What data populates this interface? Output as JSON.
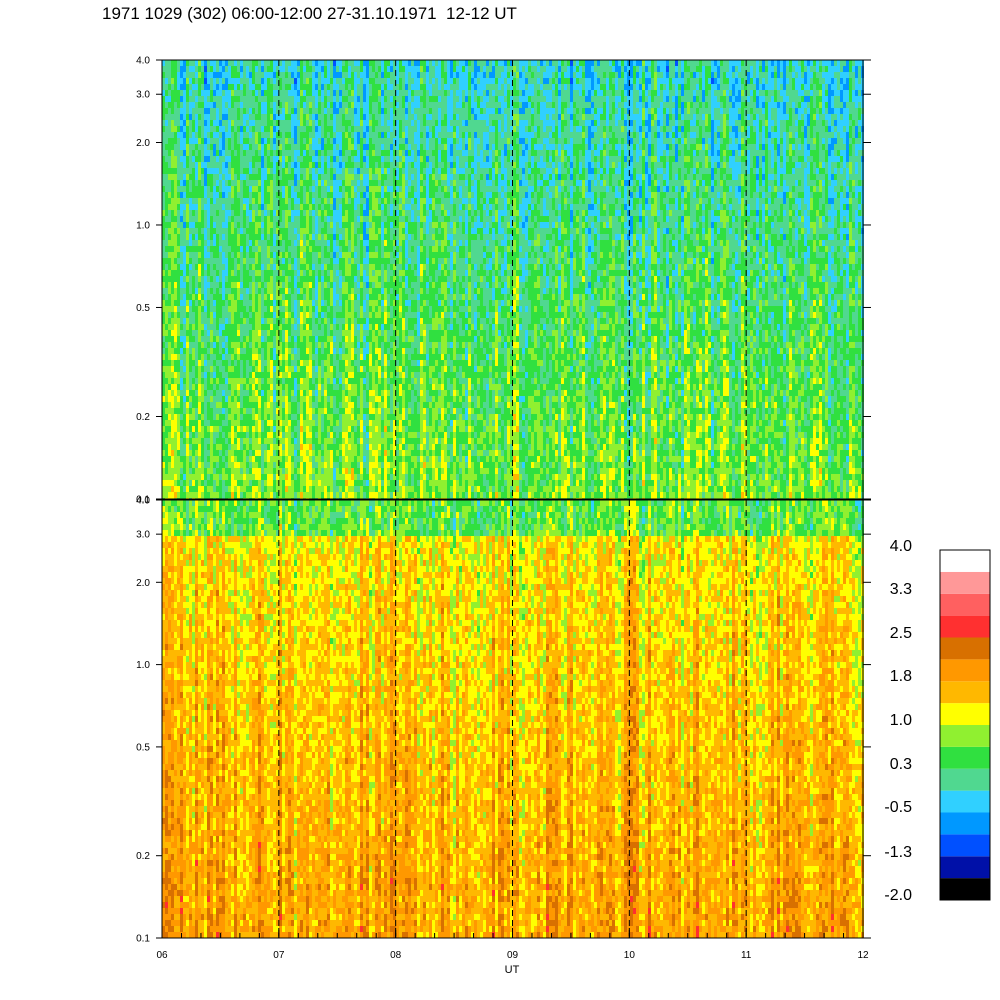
{
  "title": "1971 1029 (302) 06:00-12:00 27-31.10.1971  12-12 UT",
  "chart_data": [
    {
      "type": "heatmap",
      "panel": "top",
      "y_scale": "log",
      "ylim": [
        0.1,
        4.0
      ],
      "y_ticks": [
        "0.1",
        "0.2",
        "0.5",
        "1.0",
        "2.0",
        "3.0",
        "4.0"
      ],
      "y_tick_values": [
        0.1,
        0.2,
        0.5,
        1.0,
        2.0,
        3.0,
        4.0
      ],
      "xlim": [
        6,
        12
      ],
      "dominant_level_range": [
        -0.5,
        1.0
      ]
    },
    {
      "type": "heatmap",
      "panel": "bottom",
      "y_scale": "log",
      "ylim": [
        0.1,
        4.0
      ],
      "y_ticks": [
        "0.1",
        "0.2",
        "0.5",
        "1.0",
        "2.0",
        "3.0",
        "4.0"
      ],
      "y_tick_values": [
        0.1,
        0.2,
        0.5,
        1.0,
        2.0,
        3.0,
        4.0
      ],
      "xlim": [
        6,
        12
      ],
      "dominant_level_range": [
        0.3,
        2.0
      ]
    }
  ],
  "x_axis": {
    "label": "UT",
    "ticks": [
      "06",
      "07",
      "08",
      "09",
      "10",
      "11",
      "12"
    ],
    "tick_values": [
      6,
      7,
      8,
      9,
      10,
      11,
      12
    ],
    "dashed_lines_at": [
      7,
      8,
      9,
      10,
      11
    ]
  },
  "colorbar": {
    "labels": [
      "4.0",
      "3.3",
      "2.5",
      "1.8",
      "1.0",
      "0.3",
      "-0.5",
      "-1.3",
      "-2.0"
    ],
    "colors": [
      "#000000",
      "#0010a8",
      "#0050ff",
      "#0098ff",
      "#30d0ff",
      "#50d890",
      "#30e040",
      "#90f030",
      "#ffff00",
      "#ffb800",
      "#ff9800",
      "#d87000",
      "#ff3030",
      "#ff6060",
      "#ff9898",
      "#ffffff"
    ]
  }
}
